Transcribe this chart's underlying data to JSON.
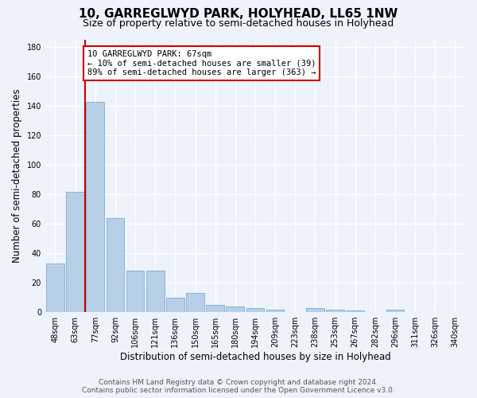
{
  "title": "10, GARREGLWYD PARK, HOLYHEAD, LL65 1NW",
  "subtitle": "Size of property relative to semi-detached houses in Holyhead",
  "xlabel": "Distribution of semi-detached houses by size in Holyhead",
  "ylabel": "Number of semi-detached properties",
  "categories": [
    "48sqm",
    "63sqm",
    "77sqm",
    "92sqm",
    "106sqm",
    "121sqm",
    "136sqm",
    "150sqm",
    "165sqm",
    "180sqm",
    "194sqm",
    "209sqm",
    "223sqm",
    "238sqm",
    "253sqm",
    "267sqm",
    "282sqm",
    "296sqm",
    "311sqm",
    "326sqm",
    "340sqm"
  ],
  "values": [
    33,
    82,
    143,
    64,
    28,
    28,
    10,
    13,
    5,
    4,
    3,
    2,
    0,
    3,
    2,
    1,
    0,
    2,
    0,
    0,
    0
  ],
  "bar_color": "#b8cfe8",
  "bar_edge_color": "#7aadd4",
  "property_line_x": 1.5,
  "annotation_text": "10 GARREGLWYD PARK: 67sqm\n← 10% of semi-detached houses are smaller (39)\n89% of semi-detached houses are larger (363) →",
  "annotation_box_color": "#ffffff",
  "annotation_box_edge_color": "#cc0000",
  "line_color": "#cc0000",
  "footer_line1": "Contains HM Land Registry data © Crown copyright and database right 2024.",
  "footer_line2": "Contains public sector information licensed under the Open Government Licence v3.0.",
  "ylim": [
    0,
    185
  ],
  "yticks": [
    0,
    20,
    40,
    60,
    80,
    100,
    120,
    140,
    160,
    180
  ],
  "background_color": "#eef2fb",
  "grid_color": "#ffffff",
  "title_fontsize": 11,
  "subtitle_fontsize": 9,
  "axis_label_fontsize": 8.5,
  "tick_fontsize": 7,
  "footer_fontsize": 6.5
}
